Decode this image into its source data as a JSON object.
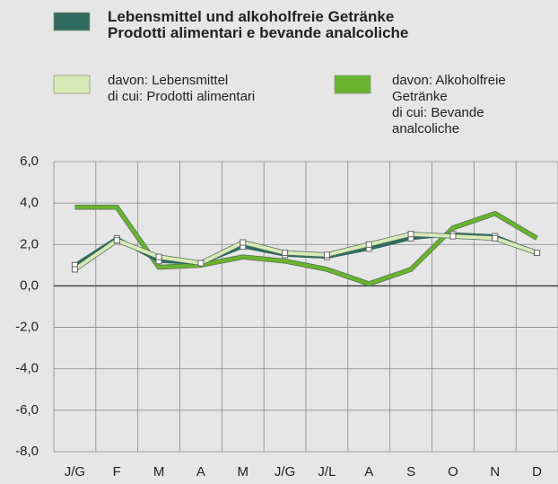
{
  "chart_data": {
    "type": "line",
    "categories": [
      "J/G",
      "F",
      "M",
      "A",
      "M",
      "J/G",
      "J/L",
      "A",
      "S",
      "O",
      "N",
      "D"
    ],
    "series": [
      {
        "name": "Lebensmittel und alkoholfreie Getränke\nProdotti alimentari e bevande analcoliche",
        "color": "#2e6b5e",
        "values": [
          1.0,
          2.3,
          1.2,
          1.1,
          1.9,
          1.5,
          1.4,
          1.8,
          2.3,
          2.5,
          2.4,
          1.6
        ]
      },
      {
        "name": "davon: Lebensmittel\ndi cui: Prodotti alimentari",
        "color": "#d8eab8",
        "values": [
          0.8,
          2.2,
          1.4,
          1.1,
          2.1,
          1.6,
          1.5,
          2.0,
          2.5,
          2.4,
          2.3,
          1.6
        ]
      },
      {
        "name": "davon: Alkoholfreie\nGetränke\ndi cui: Bevande\nanalcoliche",
        "color": "#6ab42d",
        "values": [
          3.8,
          3.8,
          0.9,
          1.0,
          1.4,
          1.2,
          0.8,
          0.1,
          0.8,
          2.8,
          3.5,
          2.3
        ]
      }
    ],
    "ylim": [
      -8,
      6
    ],
    "yticks": [
      {
        "value": -8,
        "label": "-8,0"
      },
      {
        "value": -6,
        "label": "-6,0"
      },
      {
        "value": -4,
        "label": "-4,0"
      },
      {
        "value": -2,
        "label": "-2,0"
      },
      {
        "value": 0,
        "label": "0,0"
      },
      {
        "value": 2,
        "label": "2,0"
      },
      {
        "value": 4,
        "label": "4,0"
      },
      {
        "value": 6,
        "label": "6,0"
      }
    ],
    "grid": true
  }
}
